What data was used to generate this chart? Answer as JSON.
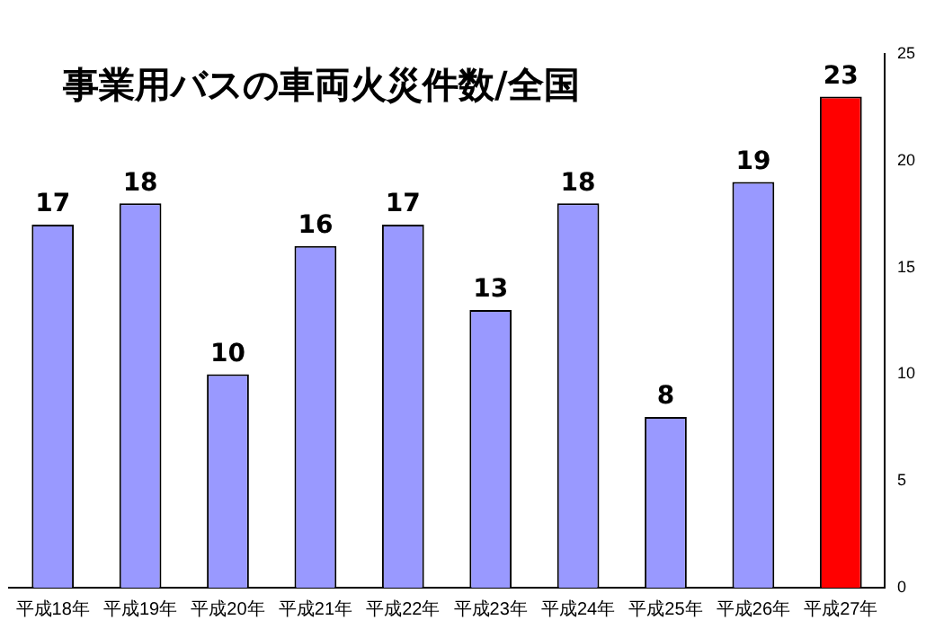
{
  "chart_data": {
    "type": "bar",
    "title": "事業用バスの車両火災件数/全国",
    "categories": [
      "平成18年",
      "平成19年",
      "平成20年",
      "平成21年",
      "平成22年",
      "平成23年",
      "平成24年",
      "平成25年",
      "平成26年",
      "平成27年"
    ],
    "values": [
      17,
      18,
      10,
      16,
      17,
      13,
      18,
      8,
      19,
      23
    ],
    "colors": [
      "#9999ff",
      "#9999ff",
      "#9999ff",
      "#9999ff",
      "#9999ff",
      "#9999ff",
      "#9999ff",
      "#9999ff",
      "#9999ff",
      "#ff0000"
    ],
    "ylim": [
      0,
      25
    ],
    "yticks": [
      0,
      5,
      10,
      15,
      20,
      25
    ],
    "grid": false,
    "data_labels": true,
    "legend": false
  }
}
